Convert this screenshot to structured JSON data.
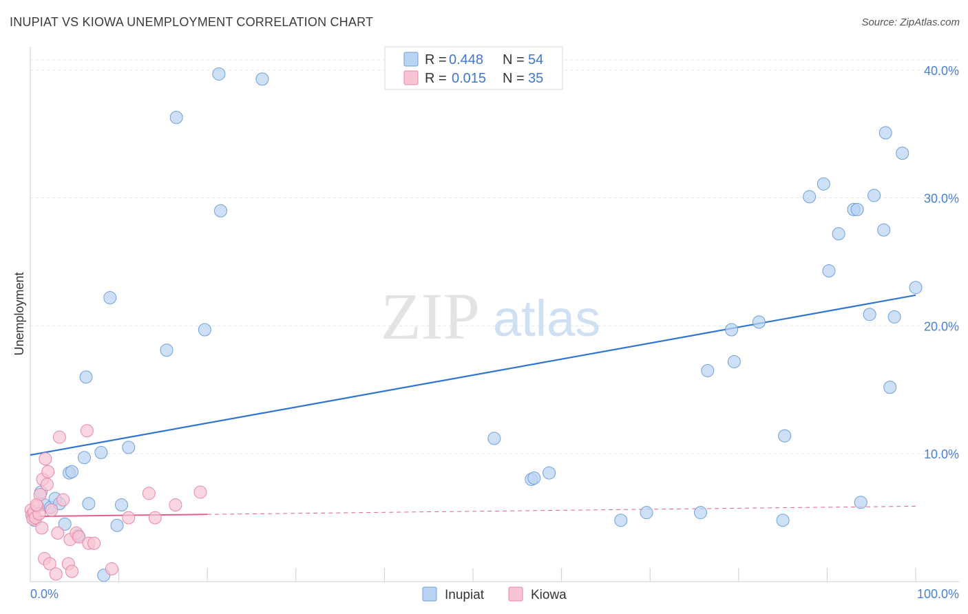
{
  "header": {
    "title": "INUPIAT VS KIOWA UNEMPLOYMENT CORRELATION CHART",
    "source": "Source: ZipAtlas.com"
  },
  "watermark": {
    "zip": "ZIP",
    "atlas": "atlas"
  },
  "colors": {
    "inupiat_fill": "#b9d3f2",
    "inupiat_stroke": "#6f9fdc",
    "inupiat_line": "#2f74d0",
    "kiowa_fill": "#f8c4d3",
    "kiowa_stroke": "#e886a6",
    "kiowa_line": "#e0608a",
    "axis_text": "#4a7fcf",
    "grid": "#dde2ea"
  },
  "legend": {
    "rows": [
      {
        "r_label": "R = ",
        "r_value": "0.448",
        "n_label": "N = ",
        "n_value": "54"
      },
      {
        "r_label": "R = ",
        "r_value": "0.015",
        "n_label": "N = ",
        "n_value": "35"
      }
    ]
  },
  "chart_data": {
    "type": "scatter",
    "title": "INUPIAT VS KIOWA UNEMPLOYMENT CORRELATION CHART",
    "xlabel": "",
    "ylabel": "Unemployment",
    "xlim": [
      0,
      100
    ],
    "ylim": [
      0,
      41.5
    ],
    "x_tick_labels": [
      "0.0%",
      "100.0%"
    ],
    "y_ticks": [
      10,
      20,
      30,
      40
    ],
    "y_tick_labels": [
      "10.0%",
      "20.0%",
      "30.0%",
      "40.0%"
    ],
    "grid": true,
    "legend_position": "top-center",
    "series": [
      {
        "name": "Inupiat",
        "trend": {
          "x": [
            0,
            100
          ],
          "y": [
            9.9,
            22.4
          ],
          "style": "solid"
        },
        "points": [
          [
            0.2,
            5.2
          ],
          [
            0.5,
            4.8
          ],
          [
            1.2,
            7.0
          ],
          [
            1.6,
            6.0
          ],
          [
            2.3,
            5.8
          ],
          [
            2.8,
            6.5
          ],
          [
            3.3,
            6.1
          ],
          [
            3.9,
            4.5
          ],
          [
            4.4,
            8.5
          ],
          [
            4.7,
            8.6
          ],
          [
            5.4,
            3.6
          ],
          [
            6.1,
            9.7
          ],
          [
            6.3,
            16.0
          ],
          [
            6.6,
            6.1
          ],
          [
            8.0,
            10.1
          ],
          [
            8.3,
            0.5
          ],
          [
            9.0,
            22.2
          ],
          [
            9.8,
            4.4
          ],
          [
            10.3,
            6.0
          ],
          [
            11.1,
            10.5
          ],
          [
            15.4,
            18.1
          ],
          [
            16.5,
            36.3
          ],
          [
            19.7,
            19.7
          ],
          [
            21.3,
            39.7
          ],
          [
            21.5,
            29.0
          ],
          [
            26.2,
            39.3
          ],
          [
            52.4,
            11.2
          ],
          [
            56.6,
            8.0
          ],
          [
            56.9,
            8.1
          ],
          [
            58.6,
            8.5
          ],
          [
            66.7,
            4.8
          ],
          [
            69.6,
            5.4
          ],
          [
            75.7,
            5.4
          ],
          [
            76.5,
            16.5
          ],
          [
            79.2,
            19.7
          ],
          [
            79.5,
            17.2
          ],
          [
            82.3,
            20.3
          ],
          [
            85.0,
            4.8
          ],
          [
            85.2,
            11.4
          ],
          [
            88.0,
            30.1
          ],
          [
            89.6,
            31.1
          ],
          [
            90.2,
            24.3
          ],
          [
            91.3,
            27.2
          ],
          [
            93.0,
            29.1
          ],
          [
            93.4,
            29.1
          ],
          [
            93.8,
            6.2
          ],
          [
            94.8,
            20.9
          ],
          [
            95.3,
            30.2
          ],
          [
            96.4,
            27.5
          ],
          [
            96.6,
            35.1
          ],
          [
            97.1,
            15.2
          ],
          [
            97.6,
            20.7
          ],
          [
            98.5,
            33.5
          ],
          [
            100.0,
            23.0
          ]
        ]
      },
      {
        "name": "Kiowa",
        "trend": {
          "x": [
            0,
            100
          ],
          "y": [
            5.1,
            5.9
          ],
          "style": "solid-then-dashed",
          "solid_until_x": 20
        },
        "points": [
          [
            0.1,
            5.6
          ],
          [
            0.2,
            5.2
          ],
          [
            0.3,
            4.9
          ],
          [
            0.4,
            5.4
          ],
          [
            0.6,
            5.0
          ],
          [
            0.8,
            5.9
          ],
          [
            1.0,
            5.3
          ],
          [
            1.1,
            6.8
          ],
          [
            1.3,
            4.2
          ],
          [
            1.4,
            8.0
          ],
          [
            1.6,
            1.8
          ],
          [
            1.7,
            9.6
          ],
          [
            1.9,
            7.6
          ],
          [
            2.0,
            8.6
          ],
          [
            2.2,
            1.4
          ],
          [
            2.4,
            5.6
          ],
          [
            2.9,
            0.6
          ],
          [
            3.1,
            3.8
          ],
          [
            3.3,
            11.3
          ],
          [
            3.7,
            6.4
          ],
          [
            4.3,
            1.4
          ],
          [
            4.5,
            3.3
          ],
          [
            4.7,
            0.8
          ],
          [
            5.2,
            3.8
          ],
          [
            5.5,
            3.5
          ],
          [
            6.4,
            11.8
          ],
          [
            6.6,
            3.0
          ],
          [
            7.2,
            3.0
          ],
          [
            9.2,
            1.0
          ],
          [
            11.1,
            5.0
          ],
          [
            13.4,
            6.9
          ],
          [
            14.1,
            5.0
          ],
          [
            16.4,
            6.0
          ],
          [
            19.2,
            7.0
          ],
          [
            0.7,
            6.0
          ]
        ]
      }
    ]
  },
  "bottom_legend": [
    {
      "label": "Inupiat"
    },
    {
      "label": "Kiowa"
    }
  ]
}
